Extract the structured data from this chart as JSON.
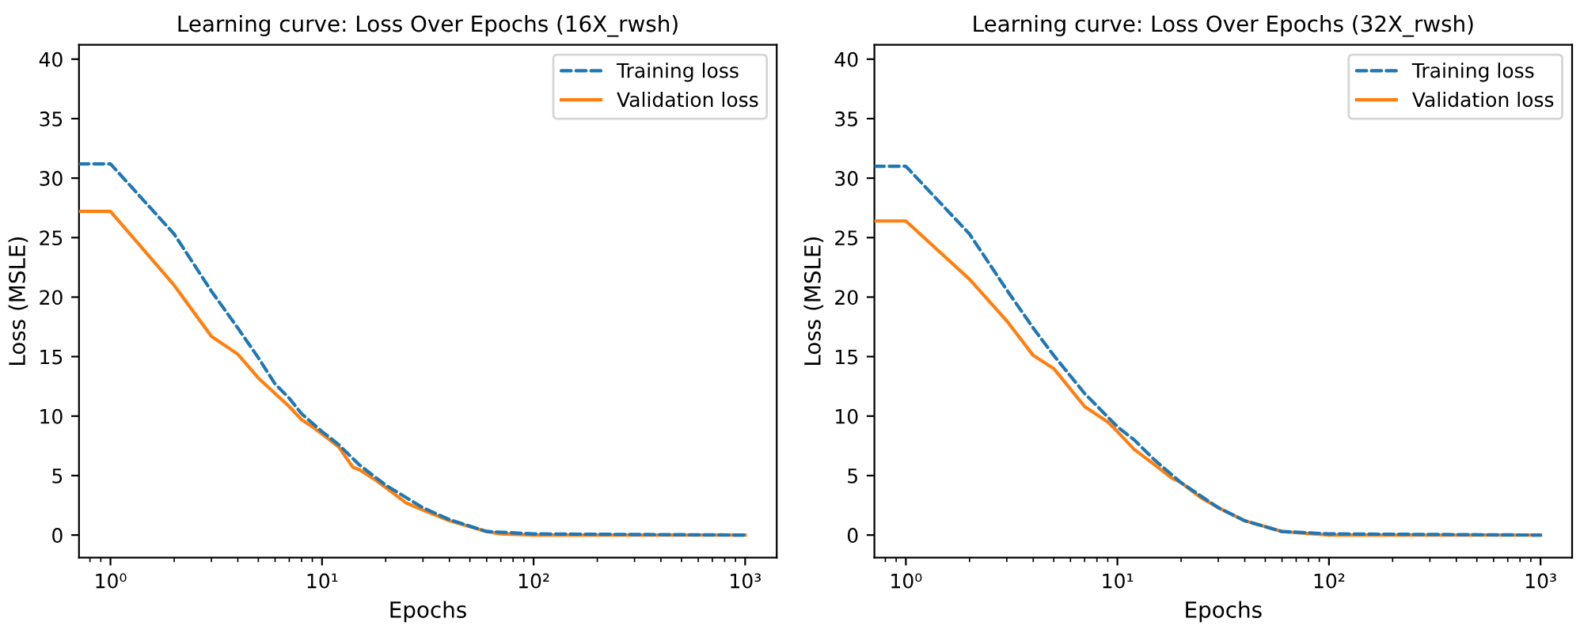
{
  "chart_data": [
    {
      "type": "line",
      "title": "Learning curve: Loss Over Epochs (16X_rwsh)",
      "xlabel": "Epochs",
      "ylabel": "Loss (MSLE)",
      "log": "x",
      "xlim": [
        0.71,
        1410
      ],
      "ylim": [
        -1.9,
        41.2
      ],
      "xticks": [
        {
          "value": 1,
          "label": "10⁰"
        },
        {
          "value": 10,
          "label": "10¹"
        },
        {
          "value": 100,
          "label": "10²"
        },
        {
          "value": 1000,
          "label": "10³"
        }
      ],
      "yticks": [
        0,
        5,
        10,
        15,
        20,
        25,
        30,
        35,
        40
      ],
      "grid": false,
      "legend": "top right",
      "series": [
        {
          "name": "Training loss",
          "color": "#1f77b4",
          "line_style": "dashed",
          "x": [
            0.71,
            1,
            2,
            3,
            4,
            5,
            6,
            7,
            8,
            10,
            12,
            15,
            20,
            30,
            40,
            60,
            100,
            1000
          ],
          "values": [
            31.2,
            31.2,
            25.3,
            20.5,
            17.4,
            14.9,
            12.7,
            11.5,
            10.2,
            8.7,
            7.6,
            5.9,
            4.2,
            2.3,
            1.3,
            0.3,
            0.1,
            0.0
          ]
        },
        {
          "name": "Validation loss",
          "color": "#ff7f0e",
          "line_style": "solid",
          "x": [
            0.71,
            1,
            2,
            3,
            4,
            5,
            6,
            7,
            8,
            9,
            10,
            12,
            13,
            14,
            15,
            18,
            20,
            25,
            30,
            40,
            50,
            60,
            70,
            100,
            1000
          ],
          "values": [
            27.2,
            27.2,
            21.0,
            16.7,
            15.2,
            13.2,
            11.9,
            10.8,
            9.7,
            9.1,
            8.5,
            7.4,
            6.5,
            5.7,
            5.5,
            4.6,
            4.0,
            2.7,
            2.1,
            1.2,
            0.7,
            0.3,
            0.1,
            0.0,
            0.0
          ]
        }
      ]
    },
    {
      "type": "line",
      "title": "Learning curve: Loss Over Epochs (32X_rwsh)",
      "xlabel": "Epochs",
      "ylabel": "Loss (MSLE)",
      "log": "x",
      "xlim": [
        0.71,
        1410
      ],
      "ylim": [
        -1.9,
        41.2
      ],
      "xticks": [
        {
          "value": 1,
          "label": "10⁰"
        },
        {
          "value": 10,
          "label": "10¹"
        },
        {
          "value": 100,
          "label": "10²"
        },
        {
          "value": 1000,
          "label": "10³"
        }
      ],
      "yticks": [
        0,
        5,
        10,
        15,
        20,
        25,
        30,
        35,
        40
      ],
      "grid": false,
      "legend": "top right",
      "series": [
        {
          "name": "Training loss",
          "color": "#1f77b4",
          "line_style": "dashed",
          "x": [
            0.71,
            1,
            2,
            3,
            4,
            5,
            7,
            10,
            12,
            15,
            20,
            30,
            40,
            60,
            100,
            1000
          ],
          "values": [
            31.0,
            31.0,
            25.3,
            20.6,
            17.4,
            15.1,
            11.9,
            9.1,
            8.0,
            6.3,
            4.4,
            2.3,
            1.2,
            0.3,
            0.1,
            0.0
          ]
        },
        {
          "name": "Validation loss",
          "color": "#ff7f0e",
          "line_style": "solid",
          "x": [
            0.71,
            1,
            2,
            3,
            4,
            5,
            7,
            9,
            10,
            12,
            15,
            18,
            20,
            25,
            30,
            40,
            60,
            100,
            1000
          ],
          "values": [
            26.4,
            26.4,
            21.5,
            18.0,
            15.1,
            14.0,
            10.8,
            9.5,
            8.7,
            7.2,
            5.9,
            4.8,
            4.4,
            3.1,
            2.3,
            1.2,
            0.3,
            0.0,
            0.0
          ]
        }
      ]
    }
  ]
}
